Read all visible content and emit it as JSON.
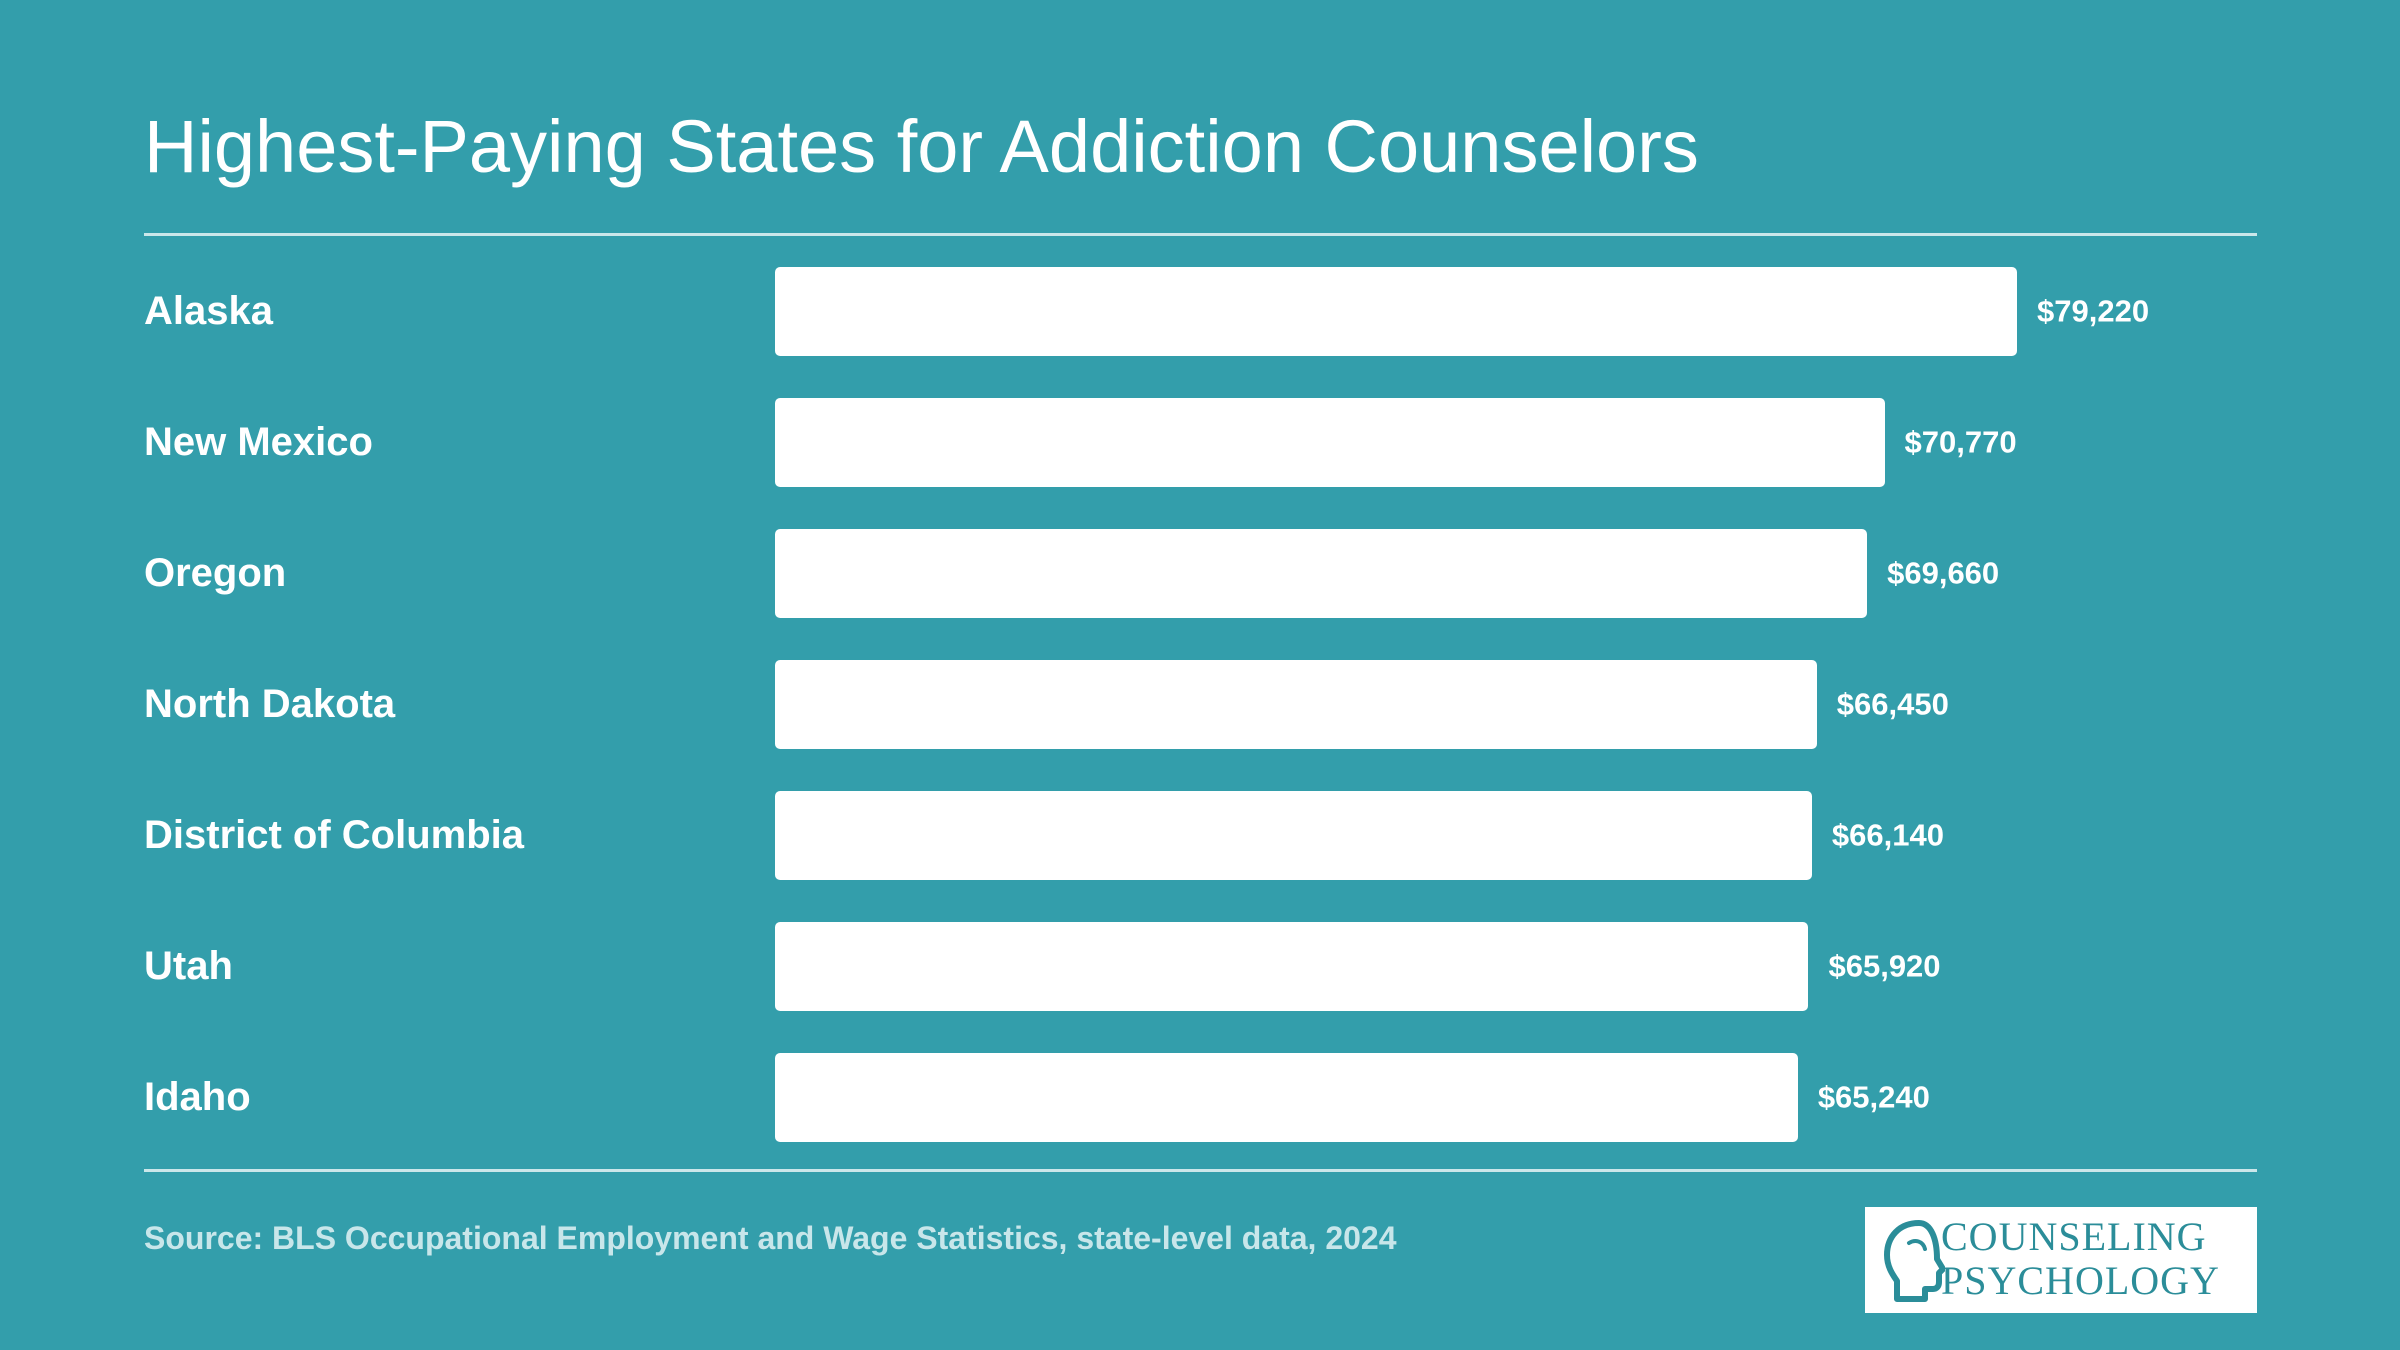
{
  "colors": {
    "background": "#339eab",
    "bar": "#ffffff",
    "text": "#ffffff",
    "source_text": "#c8e6ea",
    "logo_text": "#2b8d99"
  },
  "chart_data": {
    "type": "bar",
    "orientation": "horizontal",
    "title": "Highest-Paying States for Addiction Counselors",
    "categories": [
      "Alaska",
      "New Mexico",
      "Oregon",
      "North Dakota",
      "District of Columbia",
      "Utah",
      "Idaho"
    ],
    "values": [
      79220,
      70770,
      69660,
      66450,
      66140,
      65920,
      65240
    ],
    "value_labels": [
      "$79,220",
      "$70,770",
      "$69,660",
      "$66,450",
      "$66,140",
      "$65,920",
      "$65,240"
    ],
    "xlim": [
      0,
      79220
    ],
    "grid": false,
    "legend": "none"
  },
  "source": "Source: BLS Occupational Employment and Wage Statistics, state-level data, 2024",
  "logo": {
    "line1": "COUNSELING",
    "line2": "PSYCHOLOGY",
    "icon": "head-profile-icon"
  }
}
